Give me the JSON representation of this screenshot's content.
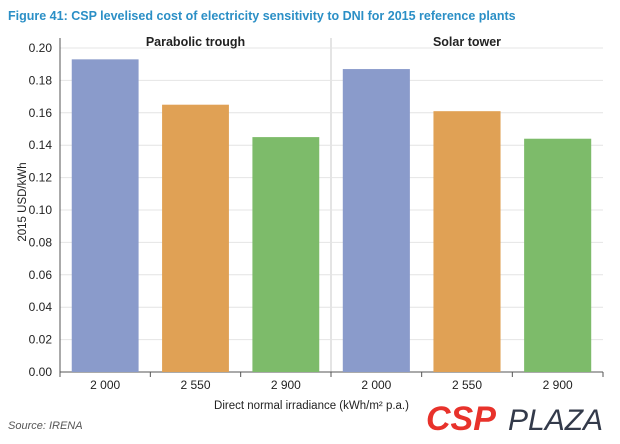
{
  "figure": {
    "title": "Figure 41: CSP levelised cost of electricity sensitivity to DNI for 2015 reference plants",
    "source": "Source: IRENA",
    "logo_text": "CSPPLAZA",
    "logo_color": "#e8322b"
  },
  "chart_data": {
    "type": "bar",
    "ylabel": "2015 USD/kWh",
    "xlabel": "Direct normal irradiance (kWh/m² p.a.)",
    "ylim": [
      0,
      0.2
    ],
    "yticks": [
      "0.00",
      "0.02",
      "0.04",
      "0.06",
      "0.08",
      "0.10",
      "0.12",
      "0.14",
      "0.16",
      "0.18",
      "0.20"
    ],
    "grid": true,
    "colors": [
      "#8a9bcb",
      "#e0a155",
      "#7dbb6a"
    ],
    "panels": [
      {
        "title": "Parabolic trough",
        "categories": [
          "2 000",
          "2 550",
          "2 900"
        ],
        "values": [
          0.193,
          0.165,
          0.145
        ]
      },
      {
        "title": "Solar tower",
        "categories": [
          "2 000",
          "2 550",
          "2 900"
        ],
        "values": [
          0.187,
          0.161,
          0.144
        ]
      }
    ]
  }
}
